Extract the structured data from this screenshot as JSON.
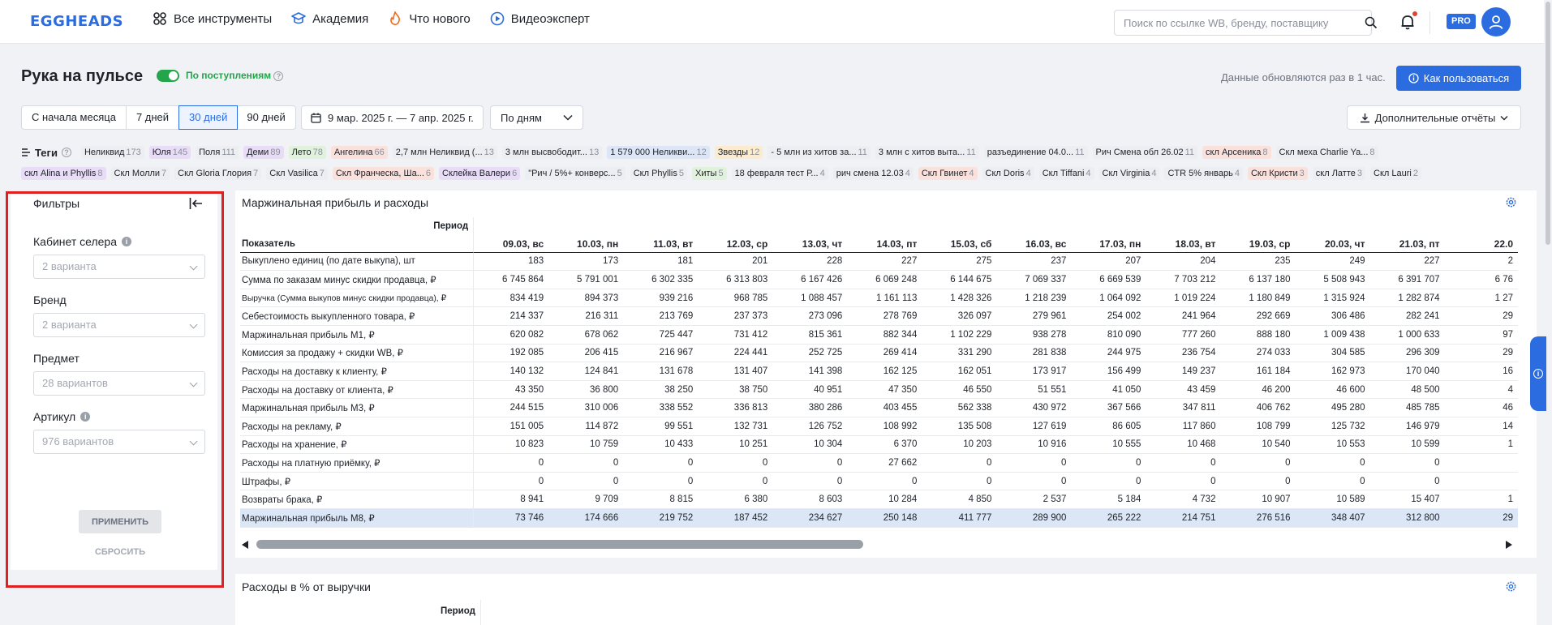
{
  "brand": {
    "logo": "EGGHEADS"
  },
  "nav": [
    {
      "label": "Все инструменты",
      "icon": "grid-icon"
    },
    {
      "label": "Академия",
      "icon": "graduation-cap-icon"
    },
    {
      "label": "Что нового",
      "icon": "flame-icon"
    },
    {
      "label": "Видеоэксперт",
      "icon": "play-circle-icon"
    }
  ],
  "search": {
    "placeholder": "Поиск по ссылке WB, бренду, поставщику"
  },
  "header_right": {
    "pro_badge": "PRO"
  },
  "page": {
    "title": "Рука на пульсе",
    "toggle_label": "По поступлениям",
    "update_note": "Данные обновляются раз в 1 час.",
    "howto_button": "Как пользоваться"
  },
  "period_tabs": [
    {
      "label": "С начала месяца",
      "active": false
    },
    {
      "label": "7 дней",
      "active": false
    },
    {
      "label": "30 дней",
      "active": true
    },
    {
      "label": "90 дней",
      "active": false
    }
  ],
  "date_range": "9 мар. 2025 г. — 7 апр. 2025 г.",
  "grouping": "По дням",
  "reports_button": "Дополнительные отчёты",
  "tags": {
    "title": "Теги",
    "row1": [
      {
        "label": "Неликвид",
        "count": "173",
        "color": "#eceef1"
      },
      {
        "label": "Юля",
        "count": "145",
        "color": "#e9dcf7"
      },
      {
        "label": "Поля",
        "count": "111",
        "color": "#eceef1"
      },
      {
        "label": "Деми",
        "count": "89",
        "color": "#e9dcf7"
      },
      {
        "label": "Лето",
        "count": "78",
        "color": "#e1f2dc"
      },
      {
        "label": "Ангелина",
        "count": "66",
        "color": "#fbe1dc"
      },
      {
        "label": "2,7 млн Неликвид (...",
        "count": "13",
        "color": "#eceef1"
      },
      {
        "label": "3 млн высвободит...",
        "count": "13",
        "color": "#eceef1"
      },
      {
        "label": "1 579 000 Неликви...",
        "count": "12",
        "color": "#dce6f7"
      },
      {
        "label": "Звезды",
        "count": "12",
        "color": "#fbecd0"
      },
      {
        "label": "- 5 млн из хитов за...",
        "count": "11",
        "color": "#eceef1"
      },
      {
        "label": "3 млн с хитов выта...",
        "count": "11",
        "color": "#eceef1"
      },
      {
        "label": "разъединение 04.0...",
        "count": "11",
        "color": "#eceef1"
      },
      {
        "label": "Рич Смена обл 26.02",
        "count": "11",
        "color": "#eceef1"
      },
      {
        "label": "скл Арсеника",
        "count": "8",
        "color": "#fbe1dc"
      },
      {
        "label": "Скл меха Charlie Ya...",
        "count": "8",
        "color": "#eceef1"
      }
    ],
    "row2": [
      {
        "label": "скл Alina и Phyllis",
        "count": "8",
        "color": "#e9dcf7"
      },
      {
        "label": "Скл Молли",
        "count": "7",
        "color": "#eceef1"
      },
      {
        "label": "Скл Gloria Глория",
        "count": "7",
        "color": "#eceef1"
      },
      {
        "label": "Скл Vasilica",
        "count": "7",
        "color": "#eceef1"
      },
      {
        "label": "Скл Франческа, Ша...",
        "count": "6",
        "color": "#fbe1dc"
      },
      {
        "label": "Склейка Валери",
        "count": "6",
        "color": "#e9dcf7"
      },
      {
        "label": "\"Рич / 5%+ конверс...",
        "count": "5",
        "color": "#eceef1"
      },
      {
        "label": "Скл Phyllis",
        "count": "5",
        "color": "#eceef1"
      },
      {
        "label": "Хиты",
        "count": "5",
        "color": "#e1f2dc"
      },
      {
        "label": "18 февраля тест Р...",
        "count": "4",
        "color": "#eceef1"
      },
      {
        "label": "рич смена 12.03",
        "count": "4",
        "color": "#eceef1"
      },
      {
        "label": "Скл Гвинет",
        "count": "4",
        "color": "#fbe1dc"
      },
      {
        "label": "Скл Doris",
        "count": "4",
        "color": "#eceef1"
      },
      {
        "label": "Скл Tiffani",
        "count": "4",
        "color": "#eceef1"
      },
      {
        "label": "Скл Virginia",
        "count": "4",
        "color": "#eceef1"
      },
      {
        "label": "CTR 5% январь",
        "count": "4",
        "color": "#eceef1"
      },
      {
        "label": "Скл Кристи",
        "count": "3",
        "color": "#fbe1dc"
      },
      {
        "label": "скл Латте",
        "count": "3",
        "color": "#eceef1"
      },
      {
        "label": "Скл Lauri",
        "count": "2",
        "color": "#eceef1"
      }
    ]
  },
  "filters": {
    "title": "Фильтры",
    "fields": [
      {
        "label": "Кабинет селера",
        "info": true,
        "value": "2 варианта"
      },
      {
        "label": "Бренд",
        "info": false,
        "value": "2 варианта"
      },
      {
        "label": "Предмет",
        "info": false,
        "value": "28 вариантов"
      },
      {
        "label": "Артикул",
        "info": true,
        "value": "976 вариантов"
      }
    ],
    "apply": "ПРИМЕНИТЬ",
    "reset": "СБРОСИТЬ"
  },
  "table1": {
    "title": "Маржинальная прибыль и расходы",
    "period_label": "Период",
    "row_header": "Показатель",
    "columns": [
      "09.03, вс",
      "10.03, пн",
      "11.03, вт",
      "12.03, ср",
      "13.03, чт",
      "14.03, пт",
      "15.03, сб",
      "16.03, вс",
      "17.03, пн",
      "18.03, вт",
      "19.03, ср",
      "20.03, чт",
      "21.03, пт",
      "22.0"
    ],
    "rows": [
      {
        "label": "Выкуплено единиц (по дате выкупа), шт",
        "values": [
          "183",
          "173",
          "181",
          "201",
          "228",
          "227",
          "275",
          "237",
          "207",
          "204",
          "235",
          "249",
          "227",
          "2"
        ]
      },
      {
        "label": "Сумма по заказам минус скидки продавца, ₽",
        "values": [
          "6 745 864",
          "5 791 001",
          "6 302 335",
          "6 313 803",
          "6 167 426",
          "6 069 248",
          "6 144 675",
          "7 069 337",
          "6 669 539",
          "7 703 212",
          "6 137 180",
          "5 508 943",
          "6 391 707",
          "6 76"
        ]
      },
      {
        "label": "Выручка (Сумма выкупов минус скидки продавца), ₽",
        "values": [
          "834 419",
          "894 373",
          "939 216",
          "968 785",
          "1 088 457",
          "1 161 113",
          "1 428 326",
          "1 218 239",
          "1 064 092",
          "1 019 224",
          "1 180 849",
          "1 315 924",
          "1 282 874",
          "1 27"
        ],
        "small": true
      },
      {
        "label": "Себестоимость выкупленного товара, ₽",
        "values": [
          "214 337",
          "216 311",
          "213 769",
          "237 373",
          "273 096",
          "278 769",
          "326 097",
          "279 961",
          "254 002",
          "241 964",
          "292 669",
          "306 486",
          "282 241",
          "29"
        ]
      },
      {
        "label": "Маржинальная прибыль М1, ₽",
        "values": [
          "620 082",
          "678 062",
          "725 447",
          "731 412",
          "815 361",
          "882 344",
          "1 102 229",
          "938 278",
          "810 090",
          "777 260",
          "888 180",
          "1 009 438",
          "1 000 633",
          "97"
        ]
      },
      {
        "label": "Комиссия за продажу + скидки WB, ₽",
        "values": [
          "192 085",
          "206 415",
          "216 967",
          "224 441",
          "252 725",
          "269 414",
          "331 290",
          "281 838",
          "244 975",
          "236 754",
          "274 033",
          "304 585",
          "296 309",
          "29"
        ]
      },
      {
        "label": "Расходы на доставку к клиенту, ₽",
        "values": [
          "140 132",
          "124 841",
          "131 678",
          "131 407",
          "141 398",
          "162 125",
          "162 051",
          "173 917",
          "156 499",
          "149 237",
          "161 184",
          "162 973",
          "170 040",
          "16"
        ]
      },
      {
        "label": "Расходы на доставку от клиента, ₽",
        "values": [
          "43 350",
          "36 800",
          "38 250",
          "38 750",
          "40 951",
          "47 350",
          "46 550",
          "51 551",
          "41 050",
          "43 459",
          "46 200",
          "46 600",
          "48 500",
          "4"
        ]
      },
      {
        "label": "Маржинальная прибыль М3, ₽",
        "values": [
          "244 515",
          "310 006",
          "338 552",
          "336 813",
          "380 286",
          "403 455",
          "562 338",
          "430 972",
          "367 566",
          "347 811",
          "406 762",
          "495 280",
          "485 785",
          "46"
        ]
      },
      {
        "label": "Расходы на рекламу, ₽",
        "values": [
          "151 005",
          "114 872",
          "99 551",
          "132 731",
          "126 752",
          "108 992",
          "135 508",
          "127 619",
          "86 605",
          "117 860",
          "108 799",
          "125 732",
          "146 979",
          "14"
        ]
      },
      {
        "label": "Расходы на хранение, ₽",
        "values": [
          "10 823",
          "10 759",
          "10 433",
          "10 251",
          "10 304",
          "6 370",
          "10 203",
          "10 916",
          "10 555",
          "10 468",
          "10 540",
          "10 553",
          "10 599",
          "1"
        ]
      },
      {
        "label": "Расходы на платную приёмку, ₽",
        "values": [
          "0",
          "0",
          "0",
          "0",
          "0",
          "27 662",
          "0",
          "0",
          "0",
          "0",
          "0",
          "0",
          "0",
          ""
        ]
      },
      {
        "label": "Штрафы, ₽",
        "values": [
          "0",
          "0",
          "0",
          "0",
          "0",
          "0",
          "0",
          "0",
          "0",
          "0",
          "0",
          "0",
          "0",
          ""
        ]
      },
      {
        "label": "Возвраты брака, ₽",
        "values": [
          "8 941",
          "9 709",
          "8 815",
          "6 380",
          "8 603",
          "10 284",
          "4 850",
          "2 537",
          "5 184",
          "4 732",
          "10 907",
          "10 589",
          "15 407",
          "1"
        ]
      },
      {
        "label": "Маржинальная прибыль М8, ₽",
        "values": [
          "73 746",
          "174 666",
          "219 752",
          "187 452",
          "234 627",
          "250 148",
          "411 777",
          "289 900",
          "265 222",
          "214 751",
          "276 516",
          "348 407",
          "312 800",
          "29"
        ],
        "highlight": true
      }
    ]
  },
  "table2": {
    "title": "Расходы в % от выручки",
    "period_label": "Период"
  }
}
